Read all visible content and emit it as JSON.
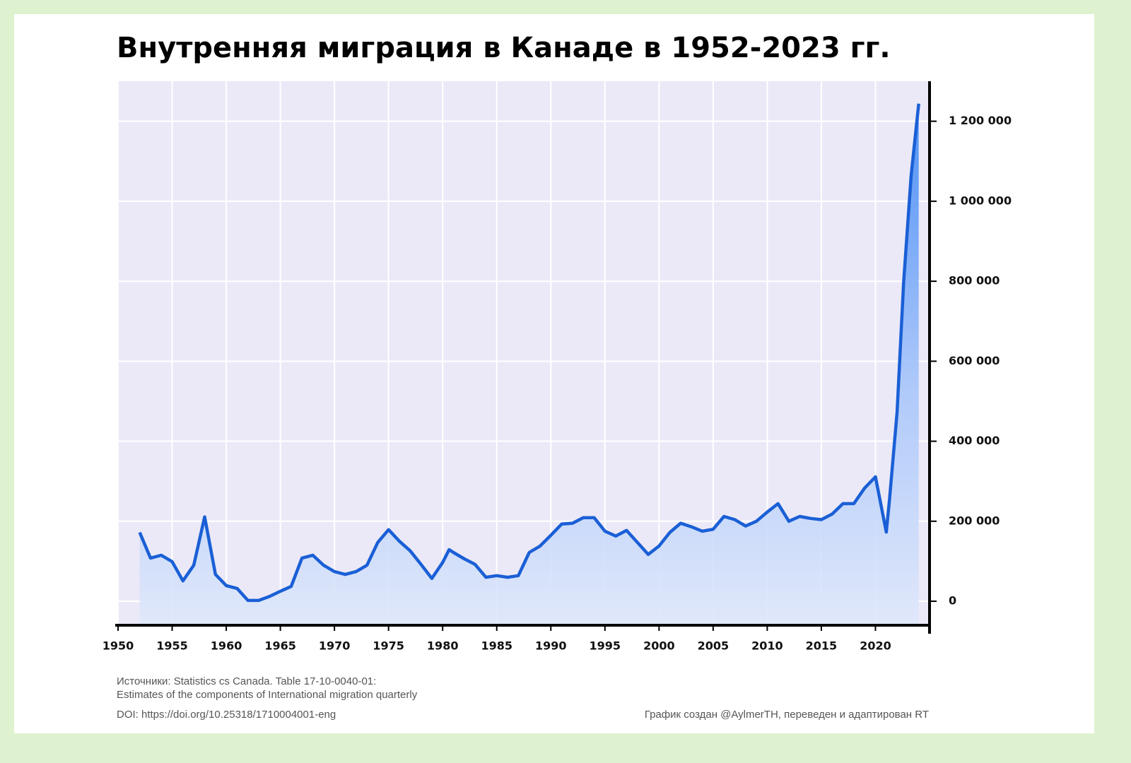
{
  "chart_data": {
    "type": "area-line",
    "title": "Внутренняя миграция в Канаде в 1952-2023 гг.",
    "x": [
      1952,
      1953,
      1954,
      1955,
      1956,
      1957,
      1958,
      1959,
      1960,
      1961,
      1962,
      1963,
      1964,
      1965,
      1966,
      1967,
      1968,
      1969,
      1970,
      1971,
      1972,
      1973,
      1974,
      1975,
      1976,
      1977,
      1978,
      1979,
      1980,
      1980.6,
      1981,
      1982,
      1983,
      1984,
      1985,
      1986,
      1987,
      1988,
      1989,
      1990,
      1991,
      1992,
      1993,
      1994,
      1995,
      1996,
      1997,
      1998,
      1999,
      2000,
      2001,
      2002,
      2003,
      2004,
      2005,
      2006,
      2007,
      2008,
      2009,
      2010,
      2011,
      2012,
      2013,
      2014,
      2015,
      2016,
      2017,
      2018,
      2019,
      2020,
      2021,
      2021.3,
      2022,
      2022.6,
      2023.3,
      2024
    ],
    "values": [
      172000,
      108000,
      115000,
      99000,
      51000,
      90000,
      211000,
      67000,
      39000,
      32000,
      2000,
      2000,
      12000,
      25000,
      37000,
      108000,
      115000,
      90000,
      74000,
      67000,
      74000,
      90000,
      147000,
      179000,
      150000,
      126000,
      92000,
      57000,
      97000,
      129000,
      122000,
      106000,
      92000,
      60000,
      64000,
      60000,
      64000,
      122000,
      138000,
      165000,
      193000,
      195000,
      209000,
      209000,
      175000,
      163000,
      177000,
      147000,
      117000,
      138000,
      172000,
      195000,
      186000,
      175000,
      180000,
      212000,
      204000,
      188000,
      200000,
      223000,
      244000,
      200000,
      212000,
      207000,
      204000,
      218000,
      244000,
      244000,
      283000,
      311000,
      173000,
      255000,
      473000,
      796000,
      1065000,
      1244000
    ],
    "color": "#1a5fd6",
    "xlim": [
      1950,
      2025
    ],
    "xticks": [
      1950,
      1955,
      1960,
      1965,
      1970,
      1975,
      1980,
      1985,
      1990,
      1995,
      2000,
      2005,
      2010,
      2015,
      2020
    ],
    "ylim": [
      -60000,
      1300000
    ],
    "yticks": [
      0,
      {
        "value": 200000,
        "label": "200 000"
      },
      {
        "value": 400000,
        "label": "400 000"
      },
      {
        "value": 600000,
        "label": "600 000"
      },
      {
        "value": 800000,
        "label": "800 000"
      },
      {
        "value": 1000000,
        "label": "1 000 000"
      },
      {
        "value": 1200000,
        "label": "1 200 000"
      }
    ],
    "grid": true,
    "source": [
      "Источники: Statistics cs Canada. Table 17-10-0040-01:",
      "Estimates of the components of International migration quarterly",
      "DOI: https://doi.org/10.25318/1710004001-eng"
    ],
    "credit": "График создан @AylmerTH, переведен и адаптирован RT"
  }
}
